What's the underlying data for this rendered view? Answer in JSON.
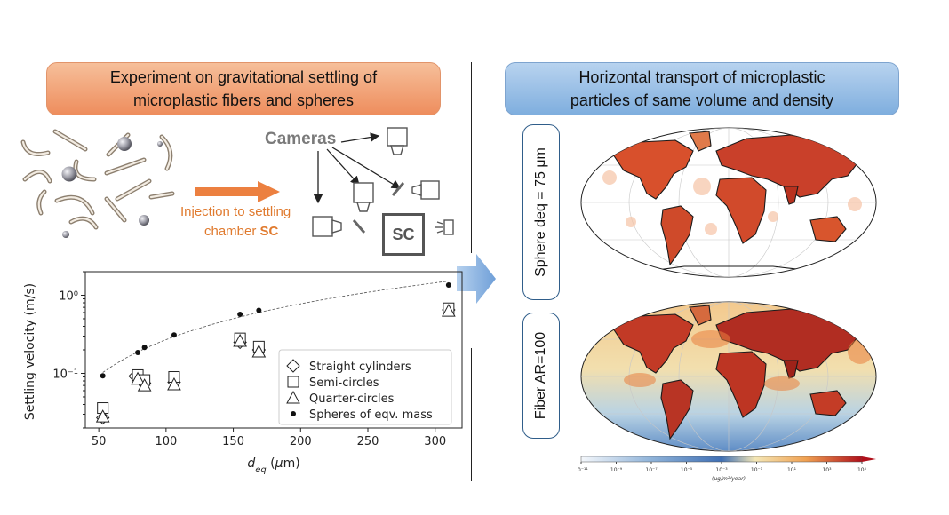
{
  "left_banner": {
    "line1": "Experiment on gravitational settling of",
    "line2": "microplastic fibers and spheres"
  },
  "right_banner": {
    "line1": "Horizontal transport of microplastic",
    "line2": "particles of same volume and density"
  },
  "setup": {
    "cameras_label": "Cameras",
    "injection_line1": "Injection to settling",
    "injection_line2_prefix": "chamber ",
    "injection_line2_bold": "SC",
    "sc_label": "SC"
  },
  "maps": [
    {
      "label": "Sphere deq = 75 μm"
    },
    {
      "label": "Fiber AR=100"
    }
  ],
  "colorbar": {
    "unit": "(μg/m²/year)",
    "ticks": [
      "10⁻¹¹",
      "10⁻⁹",
      "10⁻⁷",
      "10⁻⁵",
      "10⁻³",
      "10⁻¹",
      "10¹",
      "10³",
      "10⁵"
    ]
  },
  "colors": {
    "orange_accent": "#ee8d5d",
    "blue_accent": "#7faede",
    "injection_text": "#e07a2e"
  },
  "chart_data": {
    "type": "scatter",
    "xlabel": "d_eq (μm)",
    "ylabel": "Settling velocity (m/s)",
    "xlim": [
      40,
      320
    ],
    "ylim": [
      0.02,
      2
    ],
    "y_scale": "log",
    "x_ticks": [
      50,
      100,
      150,
      200,
      250,
      300
    ],
    "y_ticks": [
      {
        "value": 0.1,
        "label": "10⁻¹"
      },
      {
        "value": 1,
        "label": "10⁰"
      }
    ],
    "legend_position": "bottom-right",
    "series": [
      {
        "name": "Straight cylinders",
        "marker": "diamond",
        "x": [
          53,
          77,
          84,
          106,
          155,
          169,
          310
        ],
        "y": [
          0.027,
          0.092,
          0.075,
          0.077,
          0.25,
          0.2,
          0.65
        ]
      },
      {
        "name": "Semi-circles",
        "marker": "square",
        "x": [
          53,
          79,
          84,
          106,
          155,
          169,
          310
        ],
        "y": [
          0.036,
          0.095,
          0.082,
          0.09,
          0.28,
          0.22,
          0.68
        ]
      },
      {
        "name": "Quarter-circles",
        "marker": "triangle",
        "x": [
          53,
          79,
          84,
          106,
          155,
          169,
          310
        ],
        "y": [
          0.028,
          0.085,
          0.07,
          0.072,
          0.26,
          0.19,
          0.63
        ]
      },
      {
        "name": "Spheres of eqv. mass",
        "marker": "dot",
        "x": [
          53,
          79,
          84,
          106,
          155,
          169,
          310
        ],
        "y": [
          0.093,
          0.185,
          0.215,
          0.31,
          0.57,
          0.64,
          1.35
        ]
      }
    ],
    "trend_line": {
      "style": "dashed",
      "series": "Spheres of eqv. mass"
    }
  }
}
